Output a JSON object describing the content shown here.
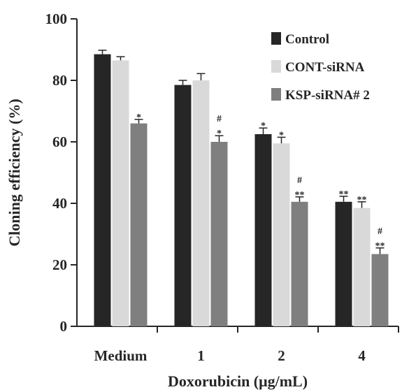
{
  "chart_data": {
    "type": "bar",
    "xlabel": "Doxorubicin (μg/mL)",
    "ylabel": "Cloning efficiency (%)",
    "ylim": [
      0,
      100
    ],
    "yticks": [
      0,
      20,
      40,
      60,
      80,
      100
    ],
    "categories": [
      "Medium",
      "1",
      "2",
      "4"
    ],
    "legend_position": "top-right",
    "series": [
      {
        "name": "Control",
        "color": "#262626",
        "values": [
          88.5,
          78.5,
          62.5,
          40.5
        ],
        "errors": [
          1.3,
          1.5,
          2.0,
          1.8
        ],
        "annotations": [
          [],
          [],
          [
            "*"
          ],
          [
            "**"
          ]
        ]
      },
      {
        "name": "CONT-siRNA",
        "color": "#d9d9d9",
        "values": [
          86.5,
          80.0,
          59.5,
          38.5
        ],
        "errors": [
          1.2,
          2.2,
          2.0,
          2.0
        ],
        "annotations": [
          [],
          [],
          [
            "*"
          ],
          [
            "**"
          ]
        ]
      },
      {
        "name": "KSP-siRNA# 2",
        "color": "#7f7f7f",
        "values": [
          66.0,
          60.0,
          40.5,
          23.5
        ],
        "errors": [
          1.3,
          2.0,
          1.6,
          2.0
        ],
        "annotations": [
          [
            "*"
          ],
          [
            "*",
            "#"
          ],
          [
            "**",
            "#"
          ],
          [
            "**",
            "#"
          ]
        ]
      }
    ]
  }
}
